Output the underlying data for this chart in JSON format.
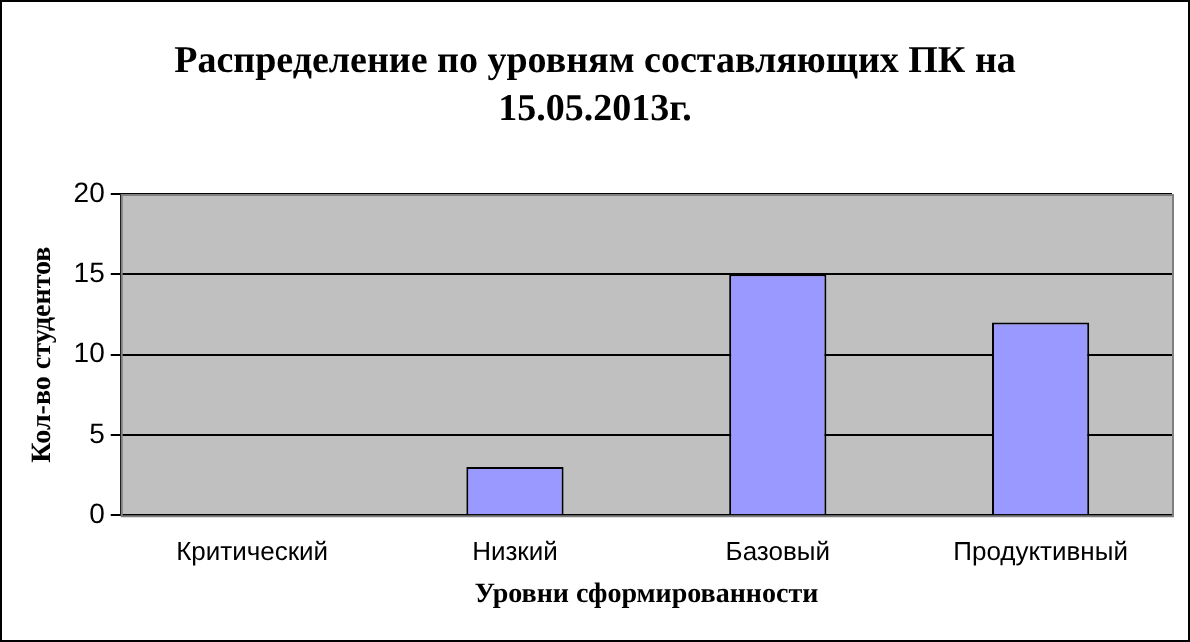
{
  "chart_data": {
    "type": "bar",
    "title": "Распределение по уровням составляющих ПК на 15.05.2013г.",
    "xlabel": "Уровни сформированности",
    "ylabel": "Кол-во студентов",
    "categories": [
      "Критический",
      "Низкий",
      "Базовый",
      "Продуктивный"
    ],
    "values": [
      0,
      3,
      15,
      12
    ],
    "color": "#9999ff",
    "ylim": [
      0,
      20
    ],
    "yticks": [
      0,
      5,
      10,
      15,
      20
    ],
    "grid": "y",
    "legend": false
  }
}
